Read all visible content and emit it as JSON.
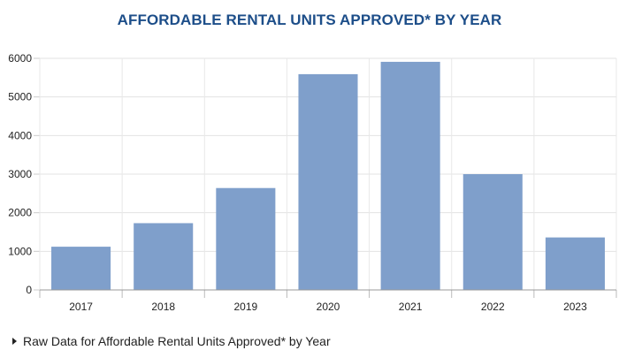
{
  "chart_data": {
    "type": "bar",
    "title": "AFFORDABLE RENTAL UNITS APPROVED* BY YEAR",
    "categories": [
      "2017",
      "2018",
      "2019",
      "2020",
      "2021",
      "2022",
      "2023"
    ],
    "values": [
      1120,
      1730,
      2640,
      5590,
      5910,
      3000,
      1360
    ],
    "ylim": [
      0,
      6000
    ],
    "yticks": [
      0,
      1000,
      2000,
      3000,
      4000,
      5000,
      6000
    ],
    "xlabel": "",
    "ylabel": "",
    "grid": true,
    "bar_color": "#7f9fcb"
  },
  "raw_data_link": {
    "label": "Raw Data for Affordable Rental Units Approved* by Year"
  }
}
